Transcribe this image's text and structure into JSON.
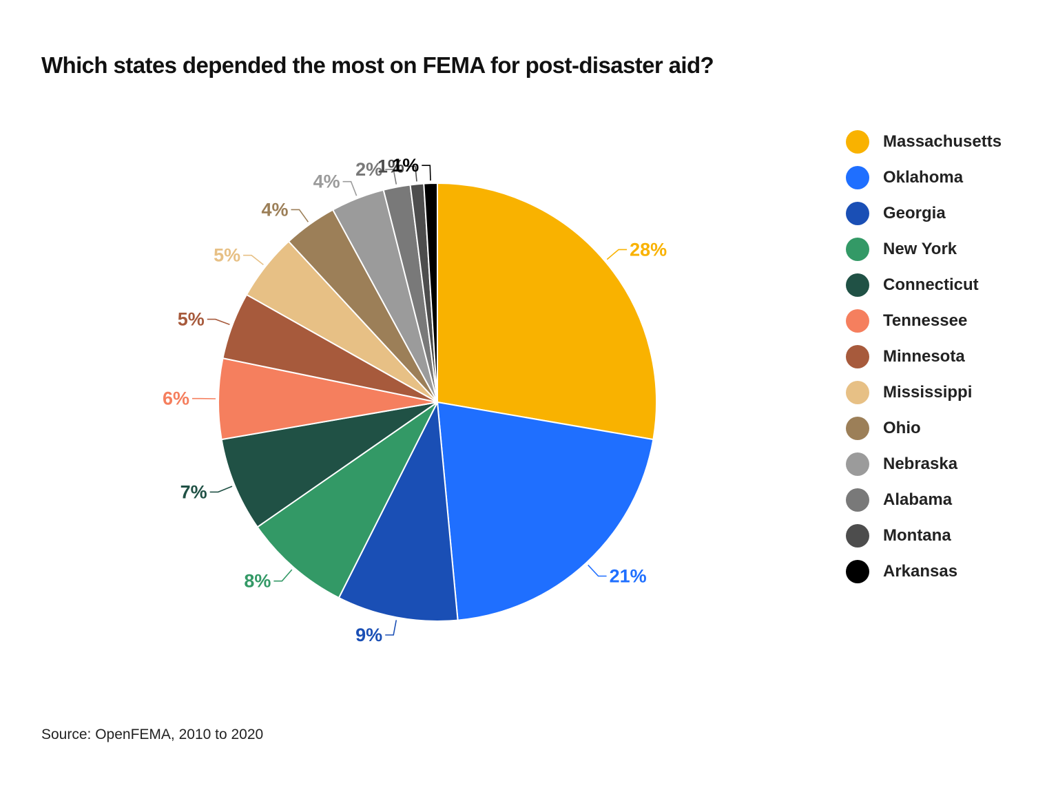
{
  "title": "Which states depended the most on FEMA for post-disaster aid?",
  "source": "Source: OpenFEMA, 2010 to 2020",
  "chart_data": {
    "type": "pie",
    "title": "Which states depended the most on FEMA for post-disaster aid?",
    "start": "12 o'clock, clockwise",
    "legend_position": "right",
    "slices": [
      {
        "name": "Massachusetts",
        "value": 28,
        "label": "28%",
        "color": "#F9B200"
      },
      {
        "name": "Oklahoma",
        "value": 21,
        "label": "21%",
        "color": "#1F6FFF"
      },
      {
        "name": "Georgia",
        "value": 9,
        "label": "9%",
        "color": "#1A4FB5"
      },
      {
        "name": "New York",
        "value": 8,
        "label": "8%",
        "color": "#339966"
      },
      {
        "name": "Connecticut",
        "value": 7,
        "label": "7%",
        "color": "#205145"
      },
      {
        "name": "Tennessee",
        "value": 6,
        "label": "6%",
        "color": "#F57F5E"
      },
      {
        "name": "Minnesota",
        "value": 5,
        "label": "5%",
        "color": "#A75A3C"
      },
      {
        "name": "Mississippi",
        "value": 5,
        "label": "5%",
        "color": "#E7C085"
      },
      {
        "name": "Ohio",
        "value": 4,
        "label": "4%",
        "color": "#9C7F58"
      },
      {
        "name": "Nebraska",
        "value": 4,
        "label": "4%",
        "color": "#9B9B9B"
      },
      {
        "name": "Alabama",
        "value": 2,
        "label": "2%",
        "color": "#797979"
      },
      {
        "name": "Montana",
        "value": 1,
        "label": "1%",
        "color": "#4D4D4D"
      },
      {
        "name": "Arkansas",
        "value": 1,
        "label": "1%",
        "color": "#000000"
      }
    ]
  }
}
